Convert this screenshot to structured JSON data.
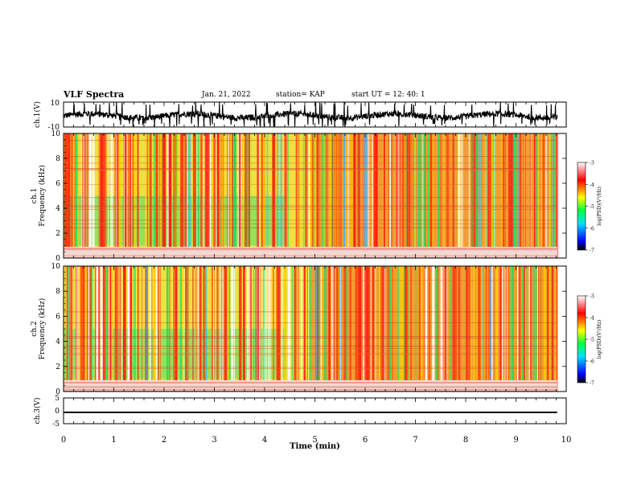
{
  "header": {
    "title": "VLF Spectra",
    "date": "Jan. 21, 2022",
    "station": "station= KAP",
    "start": "start  UT  =   12: 40: 1"
  },
  "chart_data": [
    {
      "type": "line",
      "ylabel": "ch.1(V)",
      "ylim": [
        -10,
        10
      ],
      "ytick_labels": [
        "10",
        "-10"
      ],
      "xlim": [
        0,
        10
      ],
      "x_data_range": [
        0,
        9.82
      ],
      "y_typical_range": [
        -5,
        3
      ]
    },
    {
      "type": "heatmap",
      "ylabel": "ch.1\nFrequency (kHz)",
      "ylim": [
        0,
        10
      ],
      "yticks": [
        "0",
        "2",
        "4",
        "6",
        "8",
        "10"
      ],
      "xlim": [
        0,
        10
      ],
      "x_data_range": [
        0,
        9.82
      ],
      "colorbar": {
        "label": "log(PSD)(V²/Hz)",
        "range": [
          -7,
          -3
        ],
        "ticks": [
          "-3",
          "-4",
          "-5",
          "-6",
          "-7"
        ]
      }
    },
    {
      "type": "heatmap",
      "ylabel": "ch.2\nFrequency (kHz)",
      "ylim": [
        0,
        10
      ],
      "yticks": [
        "0",
        "2",
        "4",
        "6",
        "8",
        "10"
      ],
      "xlim": [
        0,
        10
      ],
      "x_data_range": [
        0,
        9.82
      ],
      "colorbar": {
        "label": "log(PSD)(V²/Hz)",
        "range": [
          -7,
          -3
        ],
        "ticks": [
          "-3",
          "-4",
          "-5",
          "-6",
          "-7"
        ]
      }
    },
    {
      "type": "line",
      "ylabel": "ch.3(V)",
      "ylim": [
        -5,
        5
      ],
      "ytick_labels": [
        "5",
        "0",
        "-5"
      ],
      "xlim": [
        0,
        10
      ],
      "x_data_range": [
        0,
        9.82
      ],
      "y_typical_range": [
        -0.9,
        -0.3
      ],
      "xlabel": "Time (min)",
      "xticks": [
        "0",
        "1",
        "2",
        "3",
        "4",
        "5",
        "6",
        "7",
        "8",
        "9",
        "10"
      ]
    }
  ]
}
